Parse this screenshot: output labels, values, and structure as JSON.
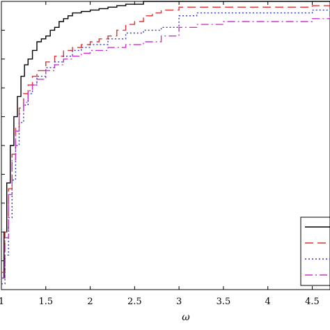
{
  "chart_data": {
    "type": "line",
    "title": "",
    "xlabel": "ω",
    "ylabel": "",
    "xlim": [
      1,
      4.7
    ],
    "ylim": [
      0,
      1
    ],
    "grid": false,
    "legend": {
      "placement": "bottom-right",
      "entries_visible": 4
    },
    "x_ticks": [
      1,
      1.5,
      2,
      2.5,
      3,
      3.5,
      4,
      4.5
    ],
    "x_tick_labels": [
      "1",
      "1.5",
      "2",
      "2.5",
      "3",
      "3.5",
      "4",
      "4.5"
    ],
    "series": [
      {
        "color": "#000000",
        "dash": "solid",
        "x": [
          1.0,
          1.03,
          1.06,
          1.1,
          1.14,
          1.18,
          1.22,
          1.26,
          1.3,
          1.35,
          1.4,
          1.45,
          1.5,
          1.55,
          1.6,
          1.65,
          1.7,
          1.75,
          1.8,
          1.9,
          2.0,
          2.1,
          2.2,
          2.3,
          2.4,
          2.5,
          2.6,
          2.7,
          3.0,
          3.5,
          4.0,
          4.5,
          4.7
        ],
        "y": [
          0.04,
          0.2,
          0.37,
          0.5,
          0.6,
          0.67,
          0.74,
          0.78,
          0.8,
          0.83,
          0.86,
          0.87,
          0.88,
          0.9,
          0.91,
          0.93,
          0.94,
          0.95,
          0.96,
          0.965,
          0.97,
          0.975,
          0.98,
          0.985,
          0.99,
          0.99,
          1.0,
          1.0,
          1.0,
          1.0,
          1.0,
          1.0,
          1.0
        ]
      },
      {
        "color": "#dd3333",
        "dash": "dashed",
        "x": [
          1.0,
          1.04,
          1.08,
          1.12,
          1.16,
          1.2,
          1.25,
          1.3,
          1.35,
          1.4,
          1.5,
          1.6,
          1.7,
          1.8,
          1.9,
          2.0,
          2.1,
          2.2,
          2.3,
          2.4,
          2.5,
          2.6,
          2.7,
          2.8,
          3.0,
          3.5,
          4.0,
          4.5,
          4.7
        ],
        "y": [
          0.06,
          0.2,
          0.35,
          0.47,
          0.56,
          0.63,
          0.68,
          0.71,
          0.74,
          0.76,
          0.79,
          0.81,
          0.83,
          0.84,
          0.85,
          0.86,
          0.87,
          0.88,
          0.9,
          0.92,
          0.93,
          0.95,
          0.96,
          0.97,
          0.98,
          0.98,
          0.98,
          0.985,
          0.985
        ]
      },
      {
        "color": "#3333cc",
        "dash": "dotted",
        "x": [
          1.0,
          1.04,
          1.08,
          1.12,
          1.16,
          1.2,
          1.25,
          1.3,
          1.35,
          1.4,
          1.5,
          1.6,
          1.7,
          1.8,
          1.9,
          2.0,
          2.2,
          2.4,
          2.6,
          2.8,
          3.0,
          3.2,
          3.5,
          4.0,
          4.5,
          4.7
        ],
        "y": [
          0.02,
          0.12,
          0.25,
          0.38,
          0.5,
          0.58,
          0.64,
          0.68,
          0.71,
          0.74,
          0.77,
          0.79,
          0.81,
          0.83,
          0.84,
          0.85,
          0.87,
          0.89,
          0.9,
          0.91,
          0.95,
          0.96,
          0.96,
          0.96,
          0.97,
          0.97
        ]
      },
      {
        "color": "#cc33cc",
        "dash": "dashdot",
        "x": [
          1.0,
          1.04,
          1.08,
          1.12,
          1.16,
          1.2,
          1.25,
          1.3,
          1.35,
          1.4,
          1.5,
          1.6,
          1.7,
          1.8,
          1.9,
          2.0,
          2.2,
          2.4,
          2.6,
          2.8,
          3.0,
          3.2,
          3.5,
          4.0,
          4.5,
          4.7
        ],
        "y": [
          0.04,
          0.18,
          0.33,
          0.45,
          0.55,
          0.61,
          0.65,
          0.69,
          0.71,
          0.73,
          0.76,
          0.78,
          0.8,
          0.81,
          0.82,
          0.83,
          0.84,
          0.85,
          0.86,
          0.88,
          0.91,
          0.92,
          0.93,
          0.93,
          0.94,
          0.95
        ]
      }
    ]
  }
}
